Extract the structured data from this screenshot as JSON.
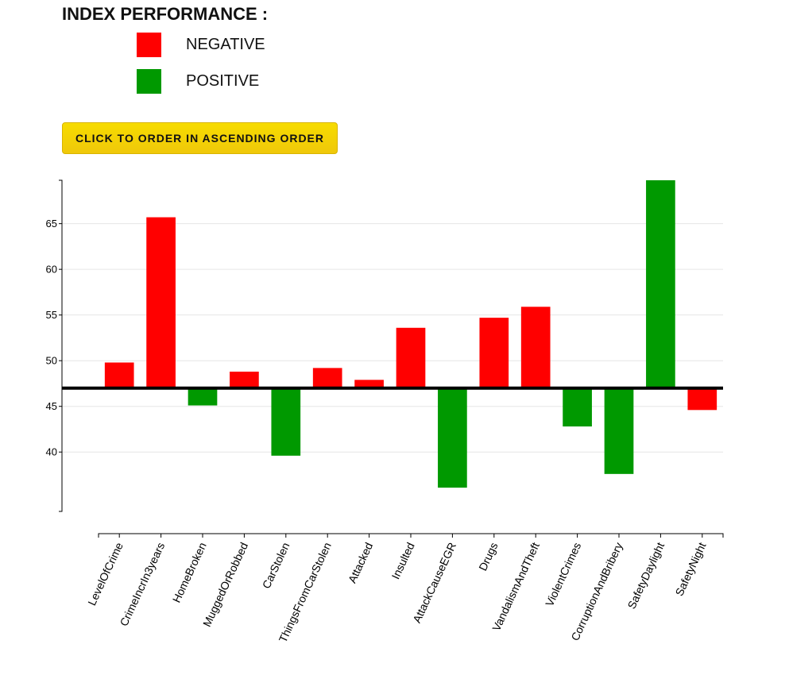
{
  "header": {
    "title": "INDEX PERFORMANCE :"
  },
  "legend": [
    {
      "label": "NEGATIVE",
      "color": "#ff0000"
    },
    {
      "label": "POSITIVE",
      "color": "#009900"
    }
  ],
  "controls": {
    "order_button_label": "CLICK TO ORDER IN ASCENDING ORDER"
  },
  "chart_data": {
    "type": "bar",
    "baseline": 47,
    "ylim": [
      33.5,
      69.75
    ],
    "yticks": [
      40,
      45,
      50,
      55,
      60,
      65
    ],
    "grid": true,
    "negative_color": "#ff0000",
    "positive_color": "#009900",
    "categories": [
      "LevelOfCrime",
      "CrimeIncrIn3years",
      "HomeBroken",
      "MuggedOrRobbed",
      "CarStolen",
      "ThingsFromCarStolen",
      "Attacked",
      "Insulted",
      "AttackCauseEGR",
      "Drugs",
      "VandalismAndTheft",
      "ViolentCrimes",
      "CorruptionAndBribery",
      "SafetyDaylight",
      "SafetyNight"
    ],
    "values": [
      49.8,
      65.7,
      45.1,
      48.8,
      39.6,
      49.2,
      47.9,
      53.6,
      36.1,
      54.7,
      55.9,
      42.8,
      37.6,
      69.75,
      44.6
    ],
    "effects": [
      "negative",
      "negative",
      "positive",
      "negative",
      "positive",
      "negative",
      "negative",
      "negative",
      "positive",
      "negative",
      "negative",
      "positive",
      "positive",
      "positive",
      "negative"
    ]
  }
}
